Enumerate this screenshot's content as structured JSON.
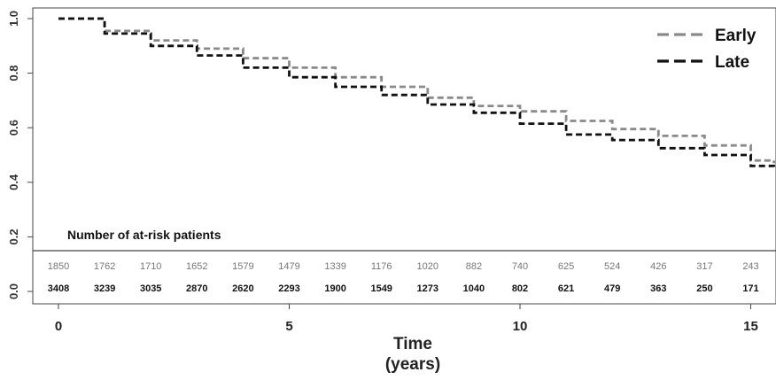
{
  "chart_data": {
    "type": "line",
    "xlabel": [
      "Time",
      "(years)"
    ],
    "xlim": [
      0,
      15.5
    ],
    "ylim": [
      0,
      1
    ],
    "x_ticks": [
      0,
      5,
      10,
      15
    ],
    "y_ticks": [
      "0.0",
      "0.2",
      "0.4",
      "0.6",
      "0.8",
      "1.0"
    ],
    "grid": false,
    "legend_position": "top-right",
    "series": [
      {
        "name": "Early",
        "color": "#8a8a8a",
        "dash": "dashed",
        "x": [
          0,
          1,
          2,
          3,
          4,
          5,
          6,
          7,
          8,
          9,
          10,
          11,
          12,
          13,
          14,
          15,
          15.5
        ],
        "y": [
          1.0,
          0.955,
          0.92,
          0.89,
          0.855,
          0.82,
          0.785,
          0.75,
          0.71,
          0.68,
          0.66,
          0.625,
          0.595,
          0.57,
          0.535,
          0.48,
          0.47
        ]
      },
      {
        "name": "Late",
        "color": "#111111",
        "dash": "dashed",
        "x": [
          0,
          1,
          2,
          3,
          4,
          5,
          6,
          7,
          8,
          9,
          10,
          11,
          12,
          13,
          14,
          15,
          15.5
        ],
        "y": [
          1.0,
          0.945,
          0.9,
          0.865,
          0.82,
          0.785,
          0.75,
          0.72,
          0.685,
          0.655,
          0.615,
          0.575,
          0.555,
          0.525,
          0.5,
          0.46,
          0.45
        ]
      }
    ],
    "at_risk": {
      "title": "Number of at-risk patients",
      "times": [
        0,
        1,
        2,
        3,
        4,
        5,
        6,
        7,
        8,
        9,
        10,
        11,
        12,
        13,
        14,
        15
      ],
      "early": [
        "1850",
        "1762",
        "1710",
        "1652",
        "1579",
        "1479",
        "1339",
        "1176",
        "1020",
        "882",
        "740",
        "625",
        "524",
        "426",
        "317",
        "243"
      ],
      "late": [
        "3408",
        "3239",
        "3035",
        "2870",
        "2620",
        "2293",
        "1900",
        "1549",
        "1273",
        "1040",
        "802",
        "621",
        "479",
        "363",
        "250",
        "171"
      ]
    }
  }
}
